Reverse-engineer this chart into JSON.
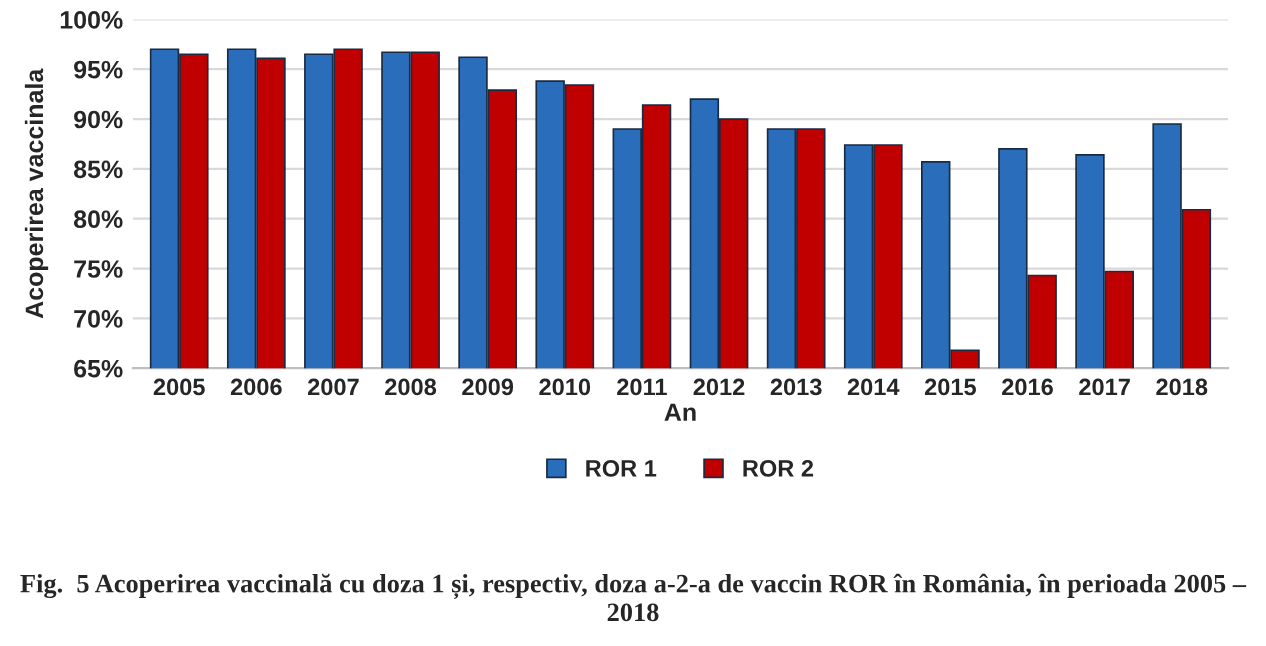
{
  "chart_data": {
    "type": "bar",
    "xlabel": "An",
    "ylabel": "Acoperirea vaccinala",
    "categories": [
      "2005",
      "2006",
      "2007",
      "2008",
      "2009",
      "2010",
      "2011",
      "2012",
      "2013",
      "2014",
      "2015",
      "2016",
      "2017",
      "2018"
    ],
    "series": [
      {
        "name": "ROR 1",
        "color": "#2a6ebb",
        "values": [
          97.0,
          97.0,
          96.5,
          96.7,
          96.2,
          93.8,
          89.0,
          92.0,
          89.0,
          87.4,
          85.7,
          87.0,
          86.4,
          89.5
        ]
      },
      {
        "name": "ROR 2",
        "color": "#c00000",
        "values": [
          96.5,
          96.1,
          97.0,
          96.7,
          92.9,
          93.4,
          91.4,
          90.0,
          89.0,
          87.4,
          66.8,
          74.3,
          74.7,
          80.9
        ]
      }
    ],
    "ylim": [
      65,
      100
    ],
    "yticks": [
      {
        "value": 65,
        "label": "65%"
      },
      {
        "value": 70,
        "label": "70%"
      },
      {
        "value": 75,
        "label": "75%"
      },
      {
        "value": 80,
        "label": "80%"
      },
      {
        "value": 85,
        "label": "85%"
      },
      {
        "value": 90,
        "label": "90%"
      },
      {
        "value": 95,
        "label": "95%"
      },
      {
        "value": 100,
        "label": "100%"
      }
    ],
    "grid": "y",
    "legend": "bottom",
    "annotations": [
      "Fig.  5 Acoperirea vaccinală cu doza 1 și, respectiv, doza a-2-a de vaccin ROR în România, în perioada 2005 – 2018"
    ]
  }
}
